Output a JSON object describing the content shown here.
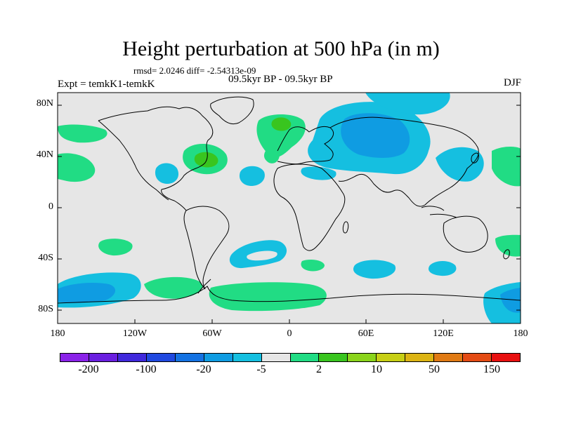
{
  "title": "Height perturbation at 500 hPa (in m)",
  "rmsd_line": "rmsd= 2.0246 diff= -2.54313e-09",
  "expt_label": "Expt = temkK1-temkK",
  "subtitle": "09.5kyr BP - 09.5kyr BP",
  "season": "DJF",
  "map": {
    "lat_ticks": [
      "80N",
      "40N",
      "0",
      "40S",
      "80S"
    ],
    "lon_ticks": [
      "180",
      "120W",
      "60W",
      "0",
      "60E",
      "120E",
      "180"
    ],
    "colors": {
      "neutral": "#e6e6e6",
      "light_blue": "#15bfe0",
      "mid_blue": "#0f9ce2",
      "light_green": "#21dc84",
      "mid_green": "#39c51f"
    }
  },
  "colorbar": {
    "colors": [
      "#8a22e8",
      "#6a1fe0",
      "#4029dc",
      "#2049e0",
      "#1472e2",
      "#0f9ce2",
      "#15bfe0",
      "#e6e6e6",
      "#21dc84",
      "#39c51f",
      "#8ad41b",
      "#c7cf15",
      "#dcb414",
      "#e07a14",
      "#e44b14",
      "#e81010"
    ],
    "labels": [
      "-200",
      "-100",
      "-20",
      "-5",
      "2",
      "10",
      "50",
      "150"
    ]
  }
}
